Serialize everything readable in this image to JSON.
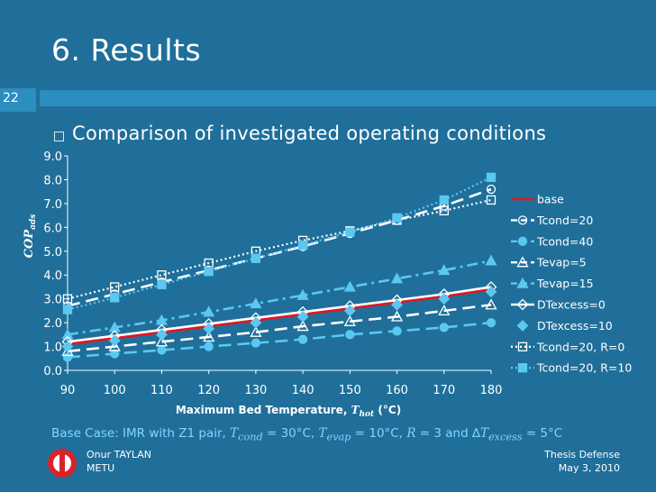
{
  "slide": {
    "title": "6. Results",
    "page_number": "22",
    "bullet": "Comparison of investigated operating conditions",
    "base_case_label": "Base Case: IMR with Z1 pair, ",
    "base_case_tcond_sym": "T",
    "base_case_tcond_sub": "cond",
    "base_case_tcond_val": " = 30°C, ",
    "base_case_tevap_sym": "T",
    "base_case_tevap_sub": "evap",
    "base_case_tevap_val": " = 10°C, ",
    "base_case_r_sym": "R",
    "base_case_r_val": " = 3 and ∆",
    "base_case_dt_sym": "T",
    "base_case_dt_sub": "excess",
    "base_case_dt_val": " = 5°C",
    "footer_author": "Onur TAYLAN",
    "footer_inst": "METU",
    "footer_event": "Thesis Defense",
    "footer_date": "May 3, 2010"
  },
  "colors": {
    "background": "#1f6f9a",
    "header_bar": "#2c8dc0",
    "base_case_text": "#7fd6ff",
    "logo_red": "#d8232a"
  },
  "chart_data": {
    "type": "line",
    "ylabel_main": "COP",
    "ylabel_sub": "ads",
    "xlabel_main": "Maximum Bed Temperature, ",
    "xlabel_sym": "T",
    "xlabel_sub": "hot",
    "xlabel_unit": " (°C)",
    "x": [
      90,
      100,
      110,
      120,
      130,
      140,
      150,
      160,
      170,
      180
    ],
    "xlim": [
      90,
      180
    ],
    "ylim": [
      0,
      9
    ],
    "x_tick_labels": [
      "90",
      "100",
      "110",
      "120",
      "130",
      "140",
      "150",
      "160",
      "170",
      "180"
    ],
    "y_tick_labels": [
      "0.0",
      "1.0",
      "2.0",
      "3.0",
      "4.0",
      "5.0",
      "6.0",
      "7.0",
      "8.0",
      "9.0"
    ],
    "legend_position": "right",
    "series": [
      {
        "name": "base",
        "color": "#e8141c",
        "dash": "solid",
        "marker": "none",
        "values": [
          1.1,
          1.35,
          1.6,
          1.85,
          2.1,
          2.35,
          2.6,
          2.85,
          3.1,
          3.4
        ]
      },
      {
        "name": "Tcond=20",
        "color": "#ffffff",
        "dash": "longdash",
        "marker": "circle-open",
        "values": [
          2.7,
          3.2,
          3.7,
          4.2,
          4.7,
          5.2,
          5.75,
          6.3,
          6.9,
          7.6
        ]
      },
      {
        "name": "Tcond=40",
        "color": "#5bc8f0",
        "dash": "longdash",
        "marker": "circle",
        "values": [
          0.55,
          0.7,
          0.85,
          1.0,
          1.15,
          1.3,
          1.5,
          1.65,
          1.8,
          2.0
        ]
      },
      {
        "name": "Tevap=5",
        "color": "#ffffff",
        "dash": "longdash",
        "marker": "triangle-open",
        "values": [
          0.8,
          1.0,
          1.2,
          1.4,
          1.6,
          1.85,
          2.05,
          2.25,
          2.5,
          2.75
        ]
      },
      {
        "name": "Tevap=15",
        "color": "#5bc8f0",
        "dash": "dashdot",
        "marker": "triangle",
        "values": [
          1.5,
          1.8,
          2.1,
          2.45,
          2.8,
          3.15,
          3.5,
          3.85,
          4.2,
          4.6
        ]
      },
      {
        "name": "DTexcess=0",
        "color": "#ffffff",
        "dash": "solid",
        "marker": "diamond-open",
        "values": [
          1.2,
          1.45,
          1.7,
          1.95,
          2.2,
          2.45,
          2.7,
          2.95,
          3.2,
          3.5
        ]
      },
      {
        "name": "DTexcess=10",
        "color": "#5bc8f0",
        "dash": "none",
        "marker": "diamond",
        "values": [
          1.0,
          1.25,
          1.5,
          1.75,
          2.0,
          2.25,
          2.5,
          2.75,
          3.0,
          3.3
        ]
      },
      {
        "name": "Tcond=20, R=0",
        "color": "#ffffff",
        "dash": "dotted",
        "marker": "square-open",
        "values": [
          3.0,
          3.5,
          4.0,
          4.5,
          5.0,
          5.45,
          5.85,
          6.3,
          6.7,
          7.15
        ]
      },
      {
        "name": "Tcond=20, R=10",
        "color": "#5bc8f0",
        "dash": "dotted",
        "marker": "square",
        "values": [
          2.55,
          3.05,
          3.6,
          4.15,
          4.7,
          5.25,
          5.8,
          6.4,
          7.15,
          8.1
        ]
      }
    ]
  }
}
